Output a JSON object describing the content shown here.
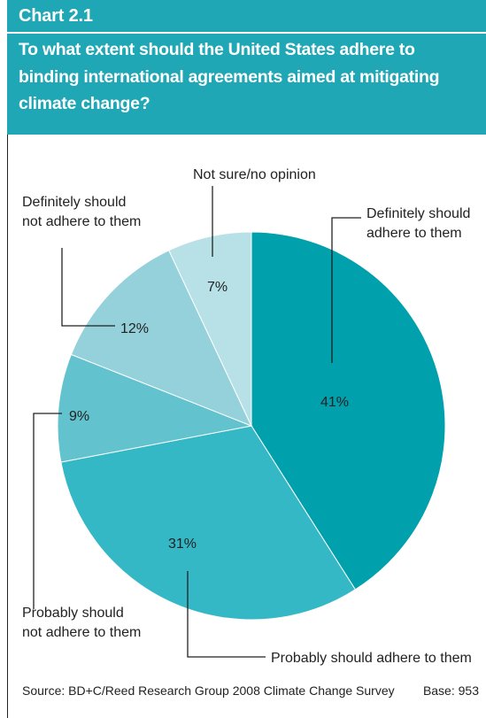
{
  "header": {
    "chart_number": "Chart 2.1",
    "title": "To what extent should the United States adhere to binding international agreements aimed at mitigating climate change?"
  },
  "colors": {
    "header_bg": "#1fa7b5",
    "slices": [
      "#00a0ad",
      "#35b8c6",
      "#62c2cd",
      "#94d1da",
      "#b7e1e7"
    ]
  },
  "chart_data": {
    "type": "pie",
    "title": "To what extent should the United States adhere to binding international agreements aimed at mitigating climate change?",
    "slices": [
      {
        "label": "Definitely should adhere to them",
        "value": 41,
        "value_label": "41%"
      },
      {
        "label": "Probably should adhere to them",
        "value": 31,
        "value_label": "31%"
      },
      {
        "label": "Probably should not adhere to them",
        "value": 9,
        "value_label": "9%"
      },
      {
        "label": "Definitely should not adhere to them",
        "value": 12,
        "value_label": "12%"
      },
      {
        "label": "Not sure/no opinion",
        "value": 7,
        "value_label": "7%"
      }
    ]
  },
  "callouts": {
    "definitely_should": [
      "Definitely should",
      "adhere to them"
    ],
    "probably_should": [
      "Probably should adhere to them"
    ],
    "probably_not": [
      "Probably should",
      "not adhere to them"
    ],
    "definitely_not": [
      "Definitely should",
      "not adhere to them"
    ],
    "not_sure": [
      "Not sure/no opinion"
    ]
  },
  "footer": {
    "source": "Source: BD+C/Reed Research Group 2008 Climate Change Survey",
    "base": "Base: 953"
  }
}
